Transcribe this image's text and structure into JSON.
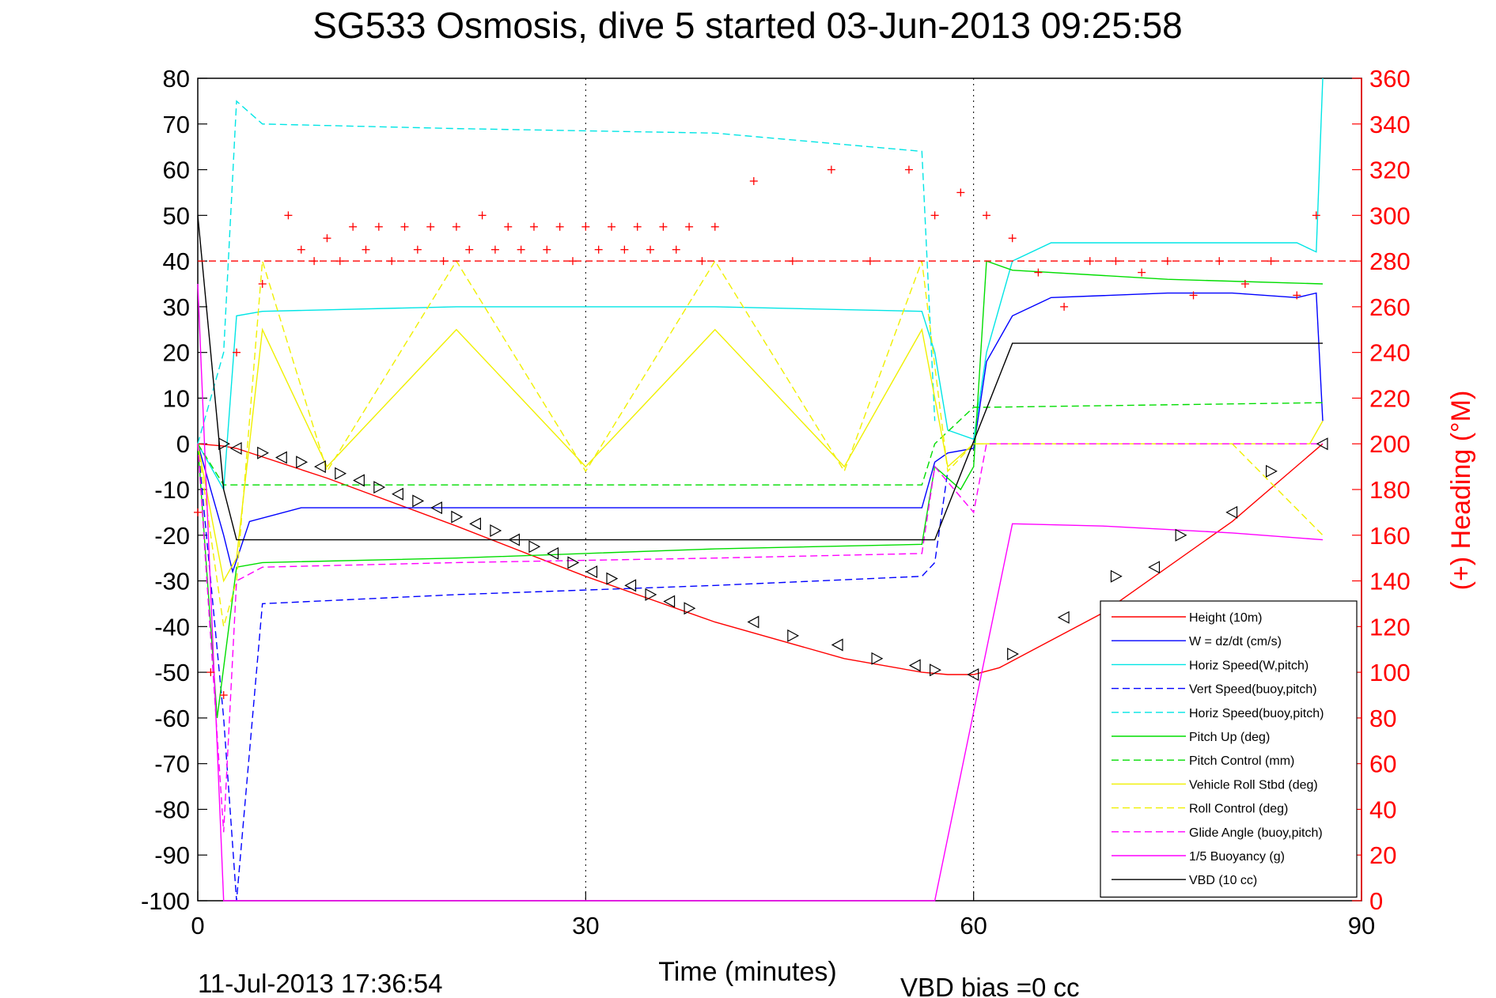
{
  "chart_data": {
    "type": "line",
    "title": "SG533 Osmosis, dive 5 started 03-Jun-2013 09:25:58",
    "xlabel": "Time (minutes)",
    "ylabel_right": "(+) Heading (°M)",
    "footer_left": "11-Jul-2013 17:36:54",
    "footer_right": "VBD bias =0 cc",
    "xlim": [
      0,
      90
    ],
    "ylim": [
      -100,
      80
    ],
    "y2lim": [
      0,
      360
    ],
    "x_ticks": [
      "0",
      "30",
      "60",
      "90"
    ],
    "y_ticks": [
      "80",
      "70",
      "60",
      "50",
      "40",
      "30",
      "20",
      "10",
      "0",
      "-10",
      "-20",
      "-30",
      "-40",
      "-50",
      "-60",
      "-70",
      "-80",
      "-90",
      "-100"
    ],
    "y2_ticks": [
      "360",
      "340",
      "320",
      "300",
      "280",
      "260",
      "240",
      "220",
      "200",
      "180",
      "160",
      "140",
      "120",
      "100",
      "80",
      "60",
      "40",
      "20",
      "0"
    ],
    "grid": "vertical dotted",
    "legend_position": "bottom-right",
    "colors": {
      "red": "#ff0000",
      "blue": "#0000ff",
      "cyan": "#00e5e5",
      "green": "#00dd00",
      "yellow": "#f0f000",
      "magenta": "#ff00ff",
      "black": "#000000"
    },
    "series": [
      {
        "name": "Height (10m)",
        "color": "#ff0000",
        "dash": false,
        "x": [
          0,
          2,
          3,
          10,
          20,
          30,
          40,
          50,
          56,
          58,
          60,
          62,
          64,
          70,
          80,
          87
        ],
        "y": [
          0,
          -0.5,
          -1,
          -7.5,
          -18,
          -29,
          -39,
          -47,
          -50,
          -50.5,
          -50.5,
          -49,
          -46,
          -37,
          -17,
          0
        ]
      },
      {
        "name": "W = dz/dt (cm/s)",
        "color": "#0000ff",
        "dash": false,
        "x": [
          0,
          2,
          2.7,
          4,
          8,
          20,
          40,
          56,
          57,
          58,
          60,
          61,
          63,
          66,
          75,
          80,
          85,
          86.5,
          87
        ],
        "y": [
          0,
          -20,
          -28,
          -17,
          -14,
          -14,
          -14,
          -14,
          -4,
          -2,
          -1,
          18,
          28,
          32,
          33,
          33,
          32,
          33,
          5
        ]
      },
      {
        "name": "Horiz Speed(W,pitch)",
        "color": "#00e5e5",
        "dash": false,
        "x": [
          0,
          2,
          3,
          5,
          20,
          40,
          56,
          57,
          58,
          60,
          61,
          63,
          66,
          75,
          85,
          86.5,
          87
        ],
        "y": [
          0,
          -10,
          28,
          29,
          30,
          30,
          29,
          20,
          3,
          1,
          20,
          40,
          44,
          44,
          44,
          42,
          80
        ]
      },
      {
        "name": "Vert Speed(buoy,pitch)",
        "color": "#0000ff",
        "dash": true,
        "x": [
          0,
          2,
          3,
          5,
          20,
          40,
          56,
          57,
          58
        ],
        "y": [
          0,
          -60,
          -100,
          -35,
          -33,
          -31,
          -29,
          -26,
          -6
        ]
      },
      {
        "name": "Horiz Speed(buoy,pitch)",
        "color": "#00e5e5",
        "dash": true,
        "x": [
          0,
          2,
          3,
          5,
          20,
          40,
          56,
          57
        ],
        "y": [
          0,
          20,
          75,
          70,
          69,
          68,
          64,
          5
        ]
      },
      {
        "name": "Pitch Up (deg)",
        "color": "#00dd00",
        "dash": false,
        "x": [
          0,
          1.5,
          3,
          5,
          20,
          40,
          56,
          57,
          59,
          60,
          61,
          63,
          75,
          87
        ],
        "y": [
          0,
          -60,
          -27,
          -26,
          -25,
          -23,
          -22,
          -5,
          -10,
          -5,
          40,
          38,
          36,
          35
        ]
      },
      {
        "name": "Pitch Control (mm)",
        "color": "#00dd00",
        "dash": true,
        "x": [
          0,
          2,
          3,
          56,
          57,
          60,
          61,
          87
        ],
        "y": [
          0,
          -9,
          -9,
          -9,
          0,
          8,
          8,
          9
        ]
      },
      {
        "name": "Vehicle Roll Stbd (deg)",
        "color": "#f0f000",
        "dash": false,
        "x": [
          0,
          2,
          3,
          5,
          10,
          20,
          30,
          40,
          50,
          56,
          58,
          60,
          62,
          70,
          80,
          86,
          87
        ],
        "y": [
          0,
          -30,
          -25,
          25,
          -5,
          25,
          -5,
          25,
          -5,
          25,
          -5,
          0,
          0,
          0,
          0,
          0,
          5
        ]
      },
      {
        "name": "Roll Control (deg)",
        "color": "#f0f000",
        "dash": true,
        "x": [
          0,
          2,
          3,
          5,
          10,
          20,
          30,
          40,
          50,
          56,
          58,
          60,
          62,
          70,
          80,
          87
        ],
        "y": [
          0,
          -40,
          -30,
          40,
          -6,
          40,
          -6,
          40,
          -6,
          40,
          -6,
          0,
          0,
          0,
          0,
          -20
        ]
      },
      {
        "name": "Glide Angle (buoy,pitch)",
        "color": "#ff00ff",
        "dash": true,
        "x": [
          0,
          2,
          3,
          5,
          20,
          40,
          56,
          57,
          60,
          61,
          87
        ],
        "y": [
          0,
          -85,
          -30,
          -27,
          -26,
          -25,
          -24,
          -5,
          -15,
          0,
          0
        ]
      },
      {
        "name": "1/5 Buoyancy (g)",
        "color": "#ff00ff",
        "dash": false,
        "x": [
          0,
          2,
          57,
          63,
          70,
          80,
          87
        ],
        "y": [
          35,
          -100,
          -100,
          -17.5,
          -18,
          -19.5,
          -21
        ]
      },
      {
        "name": "VBD (10 cc)",
        "color": "#000000",
        "dash": false,
        "x": [
          0,
          2,
          3,
          20,
          40,
          56,
          57,
          63,
          75,
          87
        ],
        "y": [
          50,
          -10,
          -21,
          -21,
          -21,
          -21,
          -21,
          22,
          22,
          22
        ]
      }
    ],
    "heading_series": {
      "name": "(+) Heading (°M)",
      "axis": "right",
      "color": "#ff0000",
      "marker": "+",
      "reference_line": 280,
      "x": [
        0,
        1,
        2,
        3,
        5,
        7,
        8,
        9,
        10,
        11,
        12,
        13,
        14,
        15,
        16,
        17,
        18,
        19,
        20,
        21,
        22,
        23,
        24,
        25,
        26,
        27,
        28,
        29,
        30,
        31,
        32,
        33,
        34,
        35,
        36,
        37,
        38,
        39,
        40,
        43,
        46,
        49,
        52,
        55,
        57,
        59,
        61,
        63,
        65,
        67,
        69,
        71,
        73,
        75,
        77,
        79,
        81,
        83,
        85,
        86.5
      ],
      "y": [
        170,
        100,
        90,
        240,
        270,
        300,
        285,
        280,
        290,
        280,
        295,
        285,
        295,
        280,
        295,
        285,
        295,
        280,
        295,
        285,
        300,
        285,
        295,
        285,
        295,
        285,
        295,
        280,
        295,
        285,
        295,
        285,
        295,
        285,
        295,
        285,
        295,
        280,
        295,
        315,
        280,
        320,
        280,
        320,
        300,
        310,
        300,
        290,
        275,
        260,
        280,
        280,
        275,
        280,
        265,
        280,
        270,
        280,
        265,
        300
      ]
    },
    "markers": {
      "description": "depth observation markers along Height curve",
      "symbols": [
        "triangle-right",
        "triangle-left"
      ],
      "x": [
        2,
        3,
        5,
        6.5,
        8,
        9.5,
        11,
        12.5,
        14,
        15.5,
        17,
        18.5,
        20,
        21.5,
        23,
        24.5,
        26,
        27.5,
        29,
        30.5,
        32,
        33.5,
        35,
        36.5,
        38,
        43,
        46,
        49.5,
        52.5,
        55.5,
        57,
        60,
        63,
        67,
        71,
        74,
        76,
        80,
        83,
        87
      ],
      "y": [
        0,
        -1,
        -2,
        -3,
        -4,
        -5,
        -6.5,
        -8,
        -9.5,
        -11,
        -12.5,
        -14,
        -16,
        -17.5,
        -19,
        -21,
        -22.5,
        -24,
        -26,
        -28,
        -29.5,
        -31,
        -33,
        -34.5,
        -36,
        -39,
        -42,
        -44,
        -47,
        -48.5,
        -49.5,
        -50.5,
        -46,
        -38,
        -29,
        -27,
        -20,
        -15,
        -6,
        0
      ]
    }
  }
}
